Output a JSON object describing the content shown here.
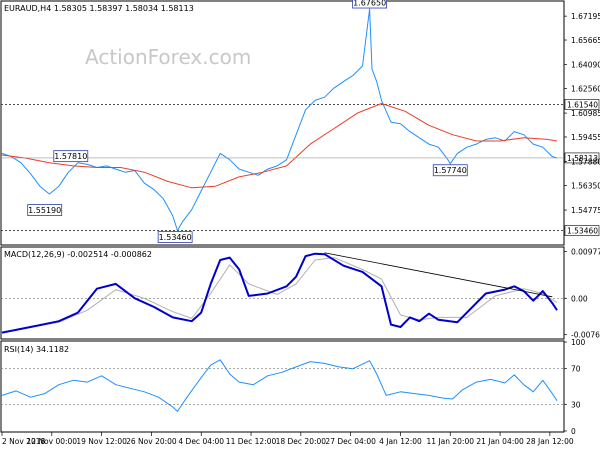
{
  "header": {
    "symbol_line": "EURAUD,H4  1.58305 1.58397 1.58034 1.58113",
    "watermark": "ActionForex.com"
  },
  "chart_data": [
    {
      "type": "line",
      "panel": "price",
      "title": "EURAUD,H4  1.58305 1.58397 1.58034 1.58113",
      "ohlc_last": {
        "open": 1.58305,
        "high": 1.58397,
        "low": 1.58034,
        "close": 1.58113
      },
      "ylim": [
        1.526,
        1.681
      ],
      "y_ticks": [
        "1.67195",
        "1.65665",
        "1.64090",
        "1.62560",
        "1.60985",
        "1.59455",
        "1.57880",
        "1.56350",
        "1.54775"
      ],
      "y_tick_values": [
        1.67195,
        1.65665,
        1.6409,
        1.6256,
        1.60985,
        1.59455,
        1.5788,
        1.5635,
        1.54775
      ],
      "hlines": [
        {
          "value": 1.6154,
          "label": "1.61540",
          "style": "dotted"
        },
        {
          "value": 1.5346,
          "label": "1.53460",
          "style": "dotted"
        }
      ],
      "last_price_label": "1.58113",
      "last_price": 1.58113,
      "price_color": "#1e90ff",
      "ma_color": "#e8402a",
      "annotations": [
        {
          "label": "1.67650",
          "x": 77.5,
          "y": 1.6765
        },
        {
          "label": "1.57810",
          "x": 14.5,
          "y": 1.5781
        },
        {
          "label": "1.55190",
          "x": 9.0,
          "y": 1.5519
        },
        {
          "label": "1.53460",
          "x": 36.5,
          "y": 1.5346
        },
        {
          "label": "1.57740",
          "x": 94.5,
          "y": 1.5774
        }
      ],
      "price_series": [
        [
          0,
          1.584
        ],
        [
          2,
          1.582
        ],
        [
          4,
          1.578
        ],
        [
          6,
          1.571
        ],
        [
          8,
          1.563
        ],
        [
          10,
          1.558
        ],
        [
          12,
          1.563
        ],
        [
          14,
          1.572
        ],
        [
          16,
          1.578
        ],
        [
          18,
          1.577
        ],
        [
          20,
          1.575
        ],
        [
          22,
          1.576
        ],
        [
          24,
          1.574
        ],
        [
          26,
          1.572
        ],
        [
          28,
          1.573
        ],
        [
          30,
          1.565
        ],
        [
          32,
          1.561
        ],
        [
          34,
          1.555
        ],
        [
          36,
          1.544
        ],
        [
          37,
          1.5346
        ],
        [
          38,
          1.54
        ],
        [
          40,
          1.548
        ],
        [
          42,
          1.56
        ],
        [
          44,
          1.572
        ],
        [
          46,
          1.584
        ],
        [
          48,
          1.58
        ],
        [
          50,
          1.574
        ],
        [
          52,
          1.572
        ],
        [
          54,
          1.57
        ],
        [
          56,
          1.574
        ],
        [
          58,
          1.576
        ],
        [
          60,
          1.58
        ],
        [
          62,
          1.596
        ],
        [
          64,
          1.612
        ],
        [
          66,
          1.618
        ],
        [
          68,
          1.62
        ],
        [
          70,
          1.626
        ],
        [
          72,
          1.63
        ],
        [
          74,
          1.634
        ],
        [
          76,
          1.64
        ],
        [
          77.5,
          1.6765
        ],
        [
          78,
          1.638
        ],
        [
          79,
          1.63
        ],
        [
          80,
          1.618
        ],
        [
          82,
          1.604
        ],
        [
          84,
          1.603
        ],
        [
          86,
          1.598
        ],
        [
          88,
          1.594
        ],
        [
          90,
          1.59
        ],
        [
          92,
          1.588
        ],
        [
          94,
          1.58
        ],
        [
          94.5,
          1.5774
        ],
        [
          96,
          1.584
        ],
        [
          98,
          1.588
        ],
        [
          100,
          1.59
        ],
        [
          102,
          1.593
        ],
        [
          104,
          1.594
        ],
        [
          106,
          1.592
        ],
        [
          108,
          1.598
        ],
        [
          110,
          1.596
        ],
        [
          112,
          1.59
        ],
        [
          114,
          1.588
        ],
        [
          116,
          1.582
        ],
        [
          117,
          1.58113
        ]
      ],
      "ma_series": [
        [
          0,
          1.583
        ],
        [
          5,
          1.581
        ],
        [
          10,
          1.578
        ],
        [
          15,
          1.576
        ],
        [
          20,
          1.575
        ],
        [
          25,
          1.575
        ],
        [
          30,
          1.572
        ],
        [
          35,
          1.566
        ],
        [
          40,
          1.562
        ],
        [
          45,
          1.563
        ],
        [
          50,
          1.569
        ],
        [
          55,
          1.572
        ],
        [
          60,
          1.576
        ],
        [
          65,
          1.59
        ],
        [
          70,
          1.6
        ],
        [
          75,
          1.61
        ],
        [
          80,
          1.616
        ],
        [
          85,
          1.611
        ],
        [
          90,
          1.602
        ],
        [
          95,
          1.596
        ],
        [
          100,
          1.592
        ],
        [
          105,
          1.592
        ],
        [
          110,
          1.594
        ],
        [
          115,
          1.593
        ],
        [
          117,
          1.592
        ]
      ]
    },
    {
      "type": "line",
      "panel": "macd",
      "title": "MACD(12,26,9) -0.002514 -0.000862",
      "values": {
        "main": -0.002514,
        "signal": -0.000862
      },
      "ylim": [
        -0.0083,
        0.0105
      ],
      "y_ticks": [
        "0.009771",
        "0.00",
        "-0.007609"
      ],
      "y_tick_values": [
        0.009771,
        0.0,
        -0.007609
      ],
      "main_color": "#0000cd",
      "signal_color": "#b0b0b0",
      "trendline": [
        [
          68,
          0.0095
        ],
        [
          116,
          0.0003
        ]
      ],
      "macd_series": [
        [
          0,
          -0.0072
        ],
        [
          4,
          -0.0064
        ],
        [
          8,
          -0.0056
        ],
        [
          12,
          -0.0048
        ],
        [
          16,
          -0.003
        ],
        [
          20,
          0.002
        ],
        [
          24,
          0.003
        ],
        [
          28,
          0.0
        ],
        [
          32,
          -0.0018
        ],
        [
          36,
          -0.004
        ],
        [
          40,
          -0.0048
        ],
        [
          42,
          -0.003
        ],
        [
          44,
          0.003
        ],
        [
          46,
          0.008
        ],
        [
          48,
          0.0085
        ],
        [
          50,
          0.006
        ],
        [
          52,
          0.0005
        ],
        [
          56,
          0.001
        ],
        [
          60,
          0.0025
        ],
        [
          62,
          0.0045
        ],
        [
          64,
          0.0088
        ],
        [
          66,
          0.0093
        ],
        [
          68,
          0.0092
        ],
        [
          72,
          0.0068
        ],
        [
          76,
          0.0055
        ],
        [
          80,
          0.0025
        ],
        [
          82,
          -0.0055
        ],
        [
          84,
          -0.006
        ],
        [
          86,
          -0.004
        ],
        [
          88,
          -0.0048
        ],
        [
          90,
          -0.0032
        ],
        [
          92,
          -0.0045
        ],
        [
          96,
          -0.005
        ],
        [
          98,
          -0.003
        ],
        [
          102,
          0.001
        ],
        [
          106,
          0.0018
        ],
        [
          108,
          0.0025
        ],
        [
          110,
          0.0015
        ],
        [
          112,
          -0.0005
        ],
        [
          114,
          0.0015
        ],
        [
          116,
          -0.001
        ],
        [
          117,
          -0.0025
        ]
      ],
      "signal_series": [
        [
          0,
          -0.007
        ],
        [
          6,
          -0.006
        ],
        [
          12,
          -0.005
        ],
        [
          18,
          -0.0025
        ],
        [
          24,
          0.0018
        ],
        [
          30,
          0.0
        ],
        [
          36,
          -0.0028
        ],
        [
          40,
          -0.0042
        ],
        [
          44,
          0.001
        ],
        [
          48,
          0.007
        ],
        [
          52,
          0.003
        ],
        [
          58,
          0.0008
        ],
        [
          62,
          0.003
        ],
        [
          66,
          0.008
        ],
        [
          70,
          0.0085
        ],
        [
          76,
          0.006
        ],
        [
          80,
          0.004
        ],
        [
          84,
          -0.0035
        ],
        [
          88,
          -0.0045
        ],
        [
          92,
          -0.004
        ],
        [
          98,
          -0.004
        ],
        [
          104,
          0.0005
        ],
        [
          110,
          0.002
        ],
        [
          114,
          0.001
        ],
        [
          117,
          -0.0009
        ]
      ]
    },
    {
      "type": "line",
      "panel": "rsi",
      "title": "RSI(14) 34.1182",
      "value": 34.1182,
      "ylim": [
        0,
        100
      ],
      "y_ticks": [
        "100",
        "70",
        "30",
        "0"
      ],
      "y_tick_values": [
        100,
        70,
        30,
        0
      ],
      "hlines": [
        70,
        30
      ],
      "line_color": "#1e90ff",
      "rsi_series": [
        [
          0,
          40
        ],
        [
          3,
          45
        ],
        [
          6,
          38
        ],
        [
          9,
          42
        ],
        [
          12,
          52
        ],
        [
          15,
          57
        ],
        [
          18,
          55
        ],
        [
          21,
          62
        ],
        [
          24,
          52
        ],
        [
          27,
          48
        ],
        [
          30,
          44
        ],
        [
          33,
          38
        ],
        [
          36,
          27
        ],
        [
          37,
          22
        ],
        [
          39,
          38
        ],
        [
          42,
          60
        ],
        [
          44,
          74
        ],
        [
          46,
          80
        ],
        [
          48,
          64
        ],
        [
          50,
          55
        ],
        [
          53,
          52
        ],
        [
          56,
          62
        ],
        [
          59,
          66
        ],
        [
          62,
          72
        ],
        [
          65,
          78
        ],
        [
          68,
          76
        ],
        [
          71,
          72
        ],
        [
          74,
          70
        ],
        [
          77.5,
          79
        ],
        [
          79,
          64
        ],
        [
          81,
          40
        ],
        [
          84,
          44
        ],
        [
          87,
          42
        ],
        [
          90,
          40
        ],
        [
          93,
          37
        ],
        [
          95,
          36
        ],
        [
          97,
          46
        ],
        [
          100,
          55
        ],
        [
          103,
          58
        ],
        [
          106,
          54
        ],
        [
          108,
          63
        ],
        [
          110,
          52
        ],
        [
          112,
          44
        ],
        [
          114,
          57
        ],
        [
          116,
          42
        ],
        [
          117,
          34
        ]
      ]
    }
  ],
  "x_axis": {
    "labels": [
      "2 Nov 2018",
      "12 Nov 00:00",
      "19 Nov 12:00",
      "26 Nov 20:00",
      "4 Dec 04:00",
      "11 Dec 12:00",
      "18 Dec 20:00",
      "27 Dec 04:00",
      "4 Jan 12:00",
      "11 Jan 20:00",
      "21 Jan 04:00",
      "28 Jan 12:00"
    ],
    "label_x": [
      0,
      10.5,
      21,
      31.5,
      42,
      52.5,
      63,
      73.5,
      84,
      94.5,
      105,
      115.5
    ],
    "xlim": [
      0,
      117
    ]
  }
}
